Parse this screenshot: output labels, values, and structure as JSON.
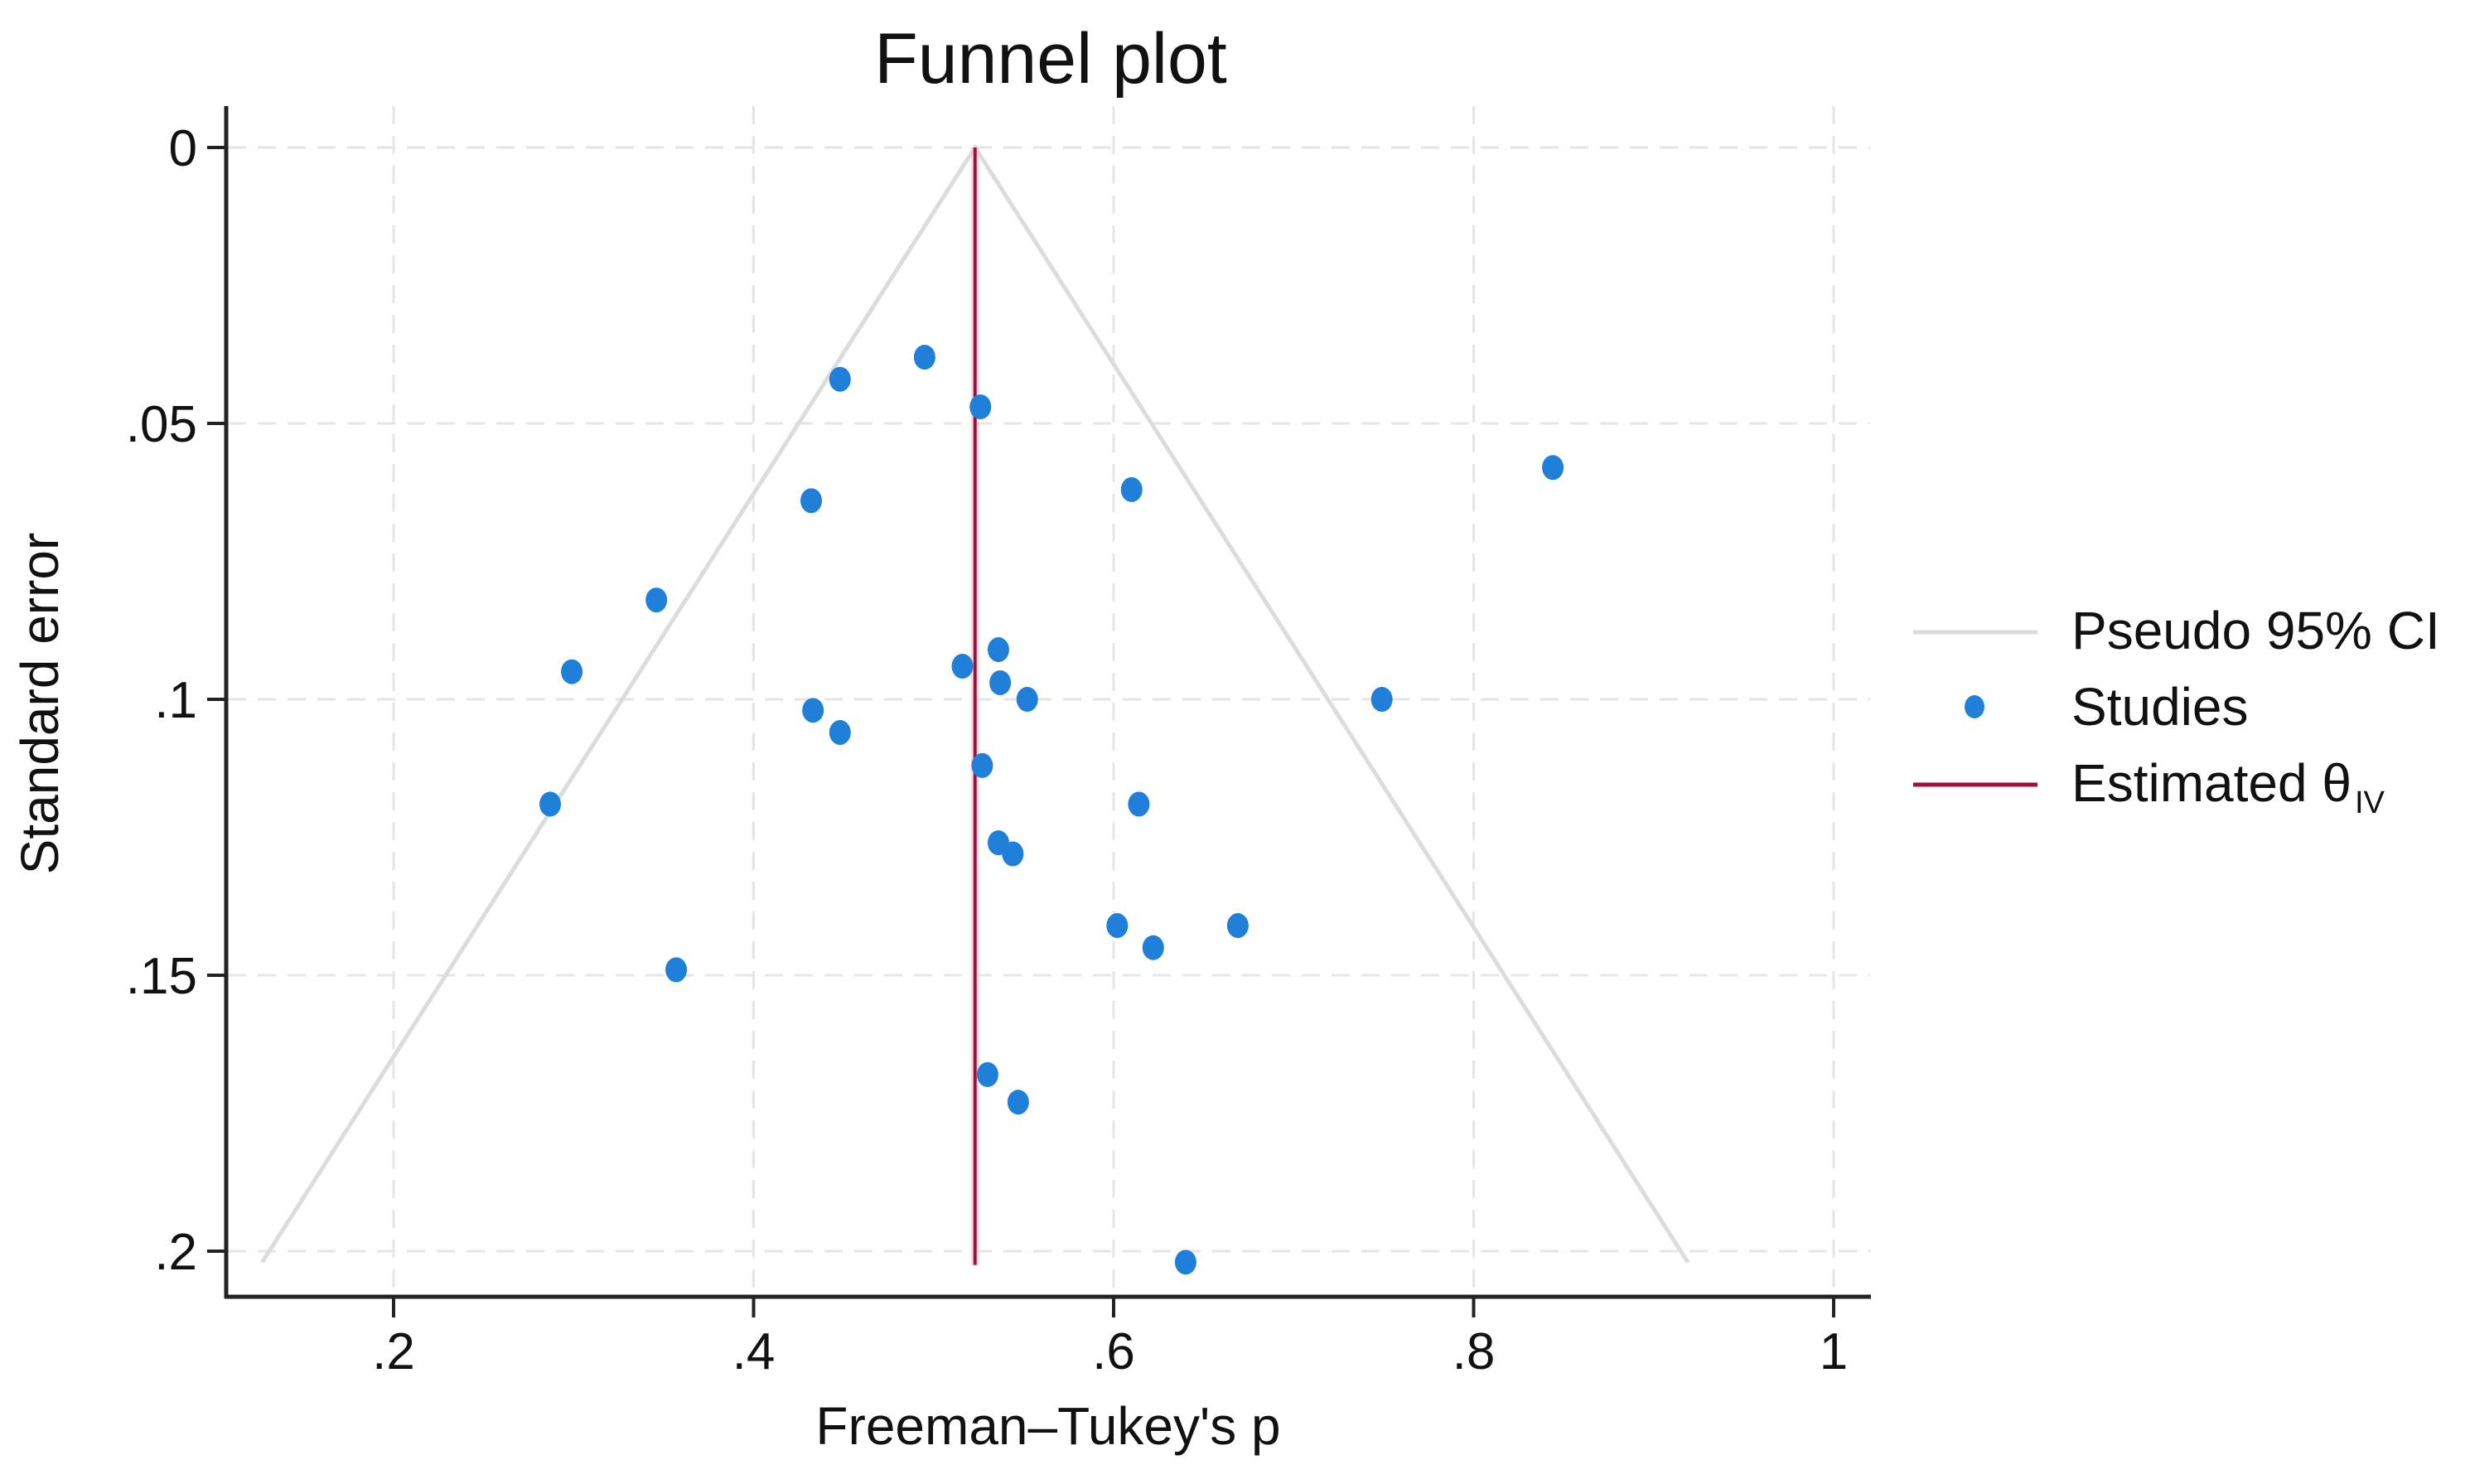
{
  "chart_data": {
    "type": "scatter",
    "subtype": "funnel",
    "title": "Funnel plot",
    "xlabel": "Freeman–Tukey's p",
    "ylabel": "Standard error",
    "xlim": [
      0.115,
      1.02
    ],
    "ylim": [
      0.2085,
      0
    ],
    "y_reversed": true,
    "grid": true,
    "legend_position": "right",
    "x_ticks": [
      0.2,
      0.4,
      0.6,
      0.8,
      1
    ],
    "x_tick_labels": [
      ".2",
      ".4",
      ".6",
      ".8",
      "1"
    ],
    "y_ticks": [
      0,
      0.05,
      0.1,
      0.15,
      0.2
    ],
    "y_tick_labels": [
      "0",
      ".05",
      ".1",
      ".15",
      ".2"
    ],
    "estimated_theta_iv": 0.523,
    "pseudo_ci": {
      "apex": {
        "x": 0.523,
        "se": 0
      },
      "left_end": {
        "x": 0.127,
        "se": 0.202
      },
      "right_end": {
        "x": 0.919,
        "se": 0.202
      }
    },
    "series": [
      {
        "name": "Studies",
        "points": [
          {
            "x": 0.495,
            "se": 0.038
          },
          {
            "x": 0.448,
            "se": 0.042
          },
          {
            "x": 0.526,
            "se": 0.047
          },
          {
            "x": 0.844,
            "se": 0.058
          },
          {
            "x": 0.61,
            "se": 0.062
          },
          {
            "x": 0.432,
            "se": 0.064
          },
          {
            "x": 0.346,
            "se": 0.082
          },
          {
            "x": 0.536,
            "se": 0.091
          },
          {
            "x": 0.516,
            "se": 0.094
          },
          {
            "x": 0.299,
            "se": 0.095
          },
          {
            "x": 0.537,
            "se": 0.097
          },
          {
            "x": 0.552,
            "se": 0.1
          },
          {
            "x": 0.749,
            "se": 0.1
          },
          {
            "x": 0.433,
            "se": 0.102
          },
          {
            "x": 0.448,
            "se": 0.106
          },
          {
            "x": 0.527,
            "se": 0.112
          },
          {
            "x": 0.287,
            "se": 0.119
          },
          {
            "x": 0.614,
            "se": 0.119
          },
          {
            "x": 0.536,
            "se": 0.126
          },
          {
            "x": 0.544,
            "se": 0.128
          },
          {
            "x": 0.602,
            "se": 0.141
          },
          {
            "x": 0.669,
            "se": 0.141
          },
          {
            "x": 0.622,
            "se": 0.145
          },
          {
            "x": 0.357,
            "se": 0.149
          },
          {
            "x": 0.53,
            "se": 0.168
          },
          {
            "x": 0.547,
            "se": 0.173
          },
          {
            "x": 0.64,
            "se": 0.202
          }
        ]
      }
    ],
    "legend": [
      {
        "label": "Pseudo 95% CI",
        "kind": "line",
        "color": "#d9d9d9"
      },
      {
        "label": "Studies",
        "kind": "marker",
        "color": "#1f7fd9"
      },
      {
        "label": "Estimated θ",
        "subscript": "IV",
        "kind": "line",
        "color": "#a0103a"
      }
    ],
    "colors": {
      "studies": "#1f7fd9",
      "estimate_line": "#a0103a",
      "ci_line": "#dcdcdc",
      "grid": "#e6e6e6",
      "axis": "#222222"
    }
  }
}
